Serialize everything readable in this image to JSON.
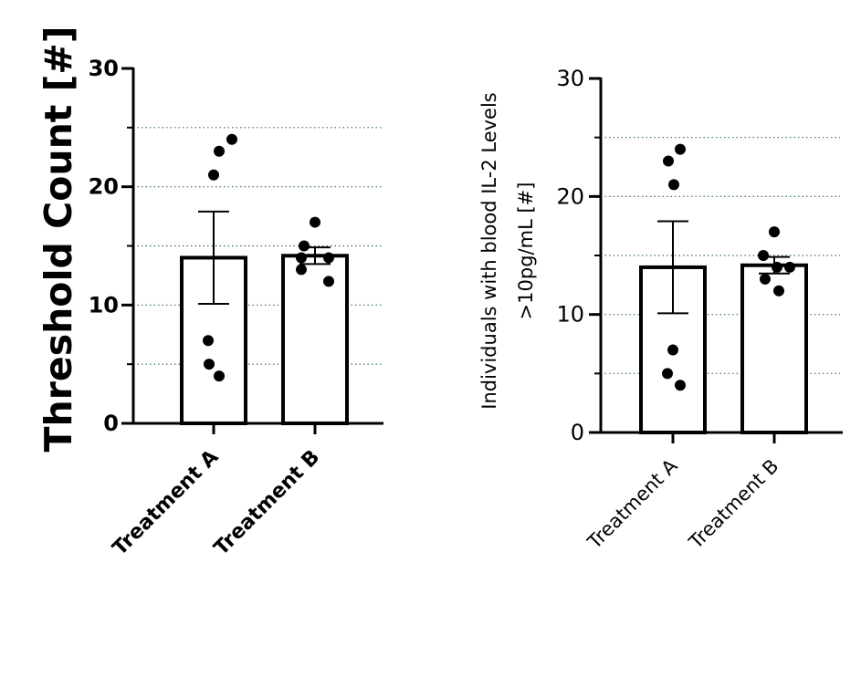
{
  "chart_data": [
    {
      "type": "bar",
      "style": "bold",
      "title": "",
      "ylabel": "Threshold Count [#]",
      "xlabel": "",
      "ylim": [
        0,
        30
      ],
      "yticks": [
        0,
        10,
        20,
        30
      ],
      "minor_gridlines": [
        5,
        10,
        15,
        20,
        25
      ],
      "categories": [
        "Treatment A",
        "Treatment B"
      ],
      "values": [
        14.0,
        14.17
      ],
      "error_sem": [
        3.9,
        0.7
      ],
      "points": [
        [
          24,
          23,
          21,
          7,
          5,
          4
        ],
        [
          17,
          15,
          14,
          14,
          13,
          12
        ]
      ]
    },
    {
      "type": "bar",
      "style": "regular",
      "title": "",
      "ylabel_lines": [
        "Individuals with blood IL-2 Levels",
        ">10pg/mL [#]"
      ],
      "xlabel": "",
      "ylim": [
        0,
        30
      ],
      "yticks": [
        0,
        10,
        20,
        30
      ],
      "minor_gridlines": [
        5,
        10,
        15,
        20,
        25
      ],
      "categories": [
        "Treatment A",
        "Treatment B"
      ],
      "values": [
        14.0,
        14.17
      ],
      "error_sem": [
        3.9,
        0.7
      ],
      "points": [
        [
          24,
          23,
          21,
          7,
          5,
          4
        ],
        [
          17,
          15,
          14,
          14,
          13,
          12
        ]
      ]
    }
  ]
}
